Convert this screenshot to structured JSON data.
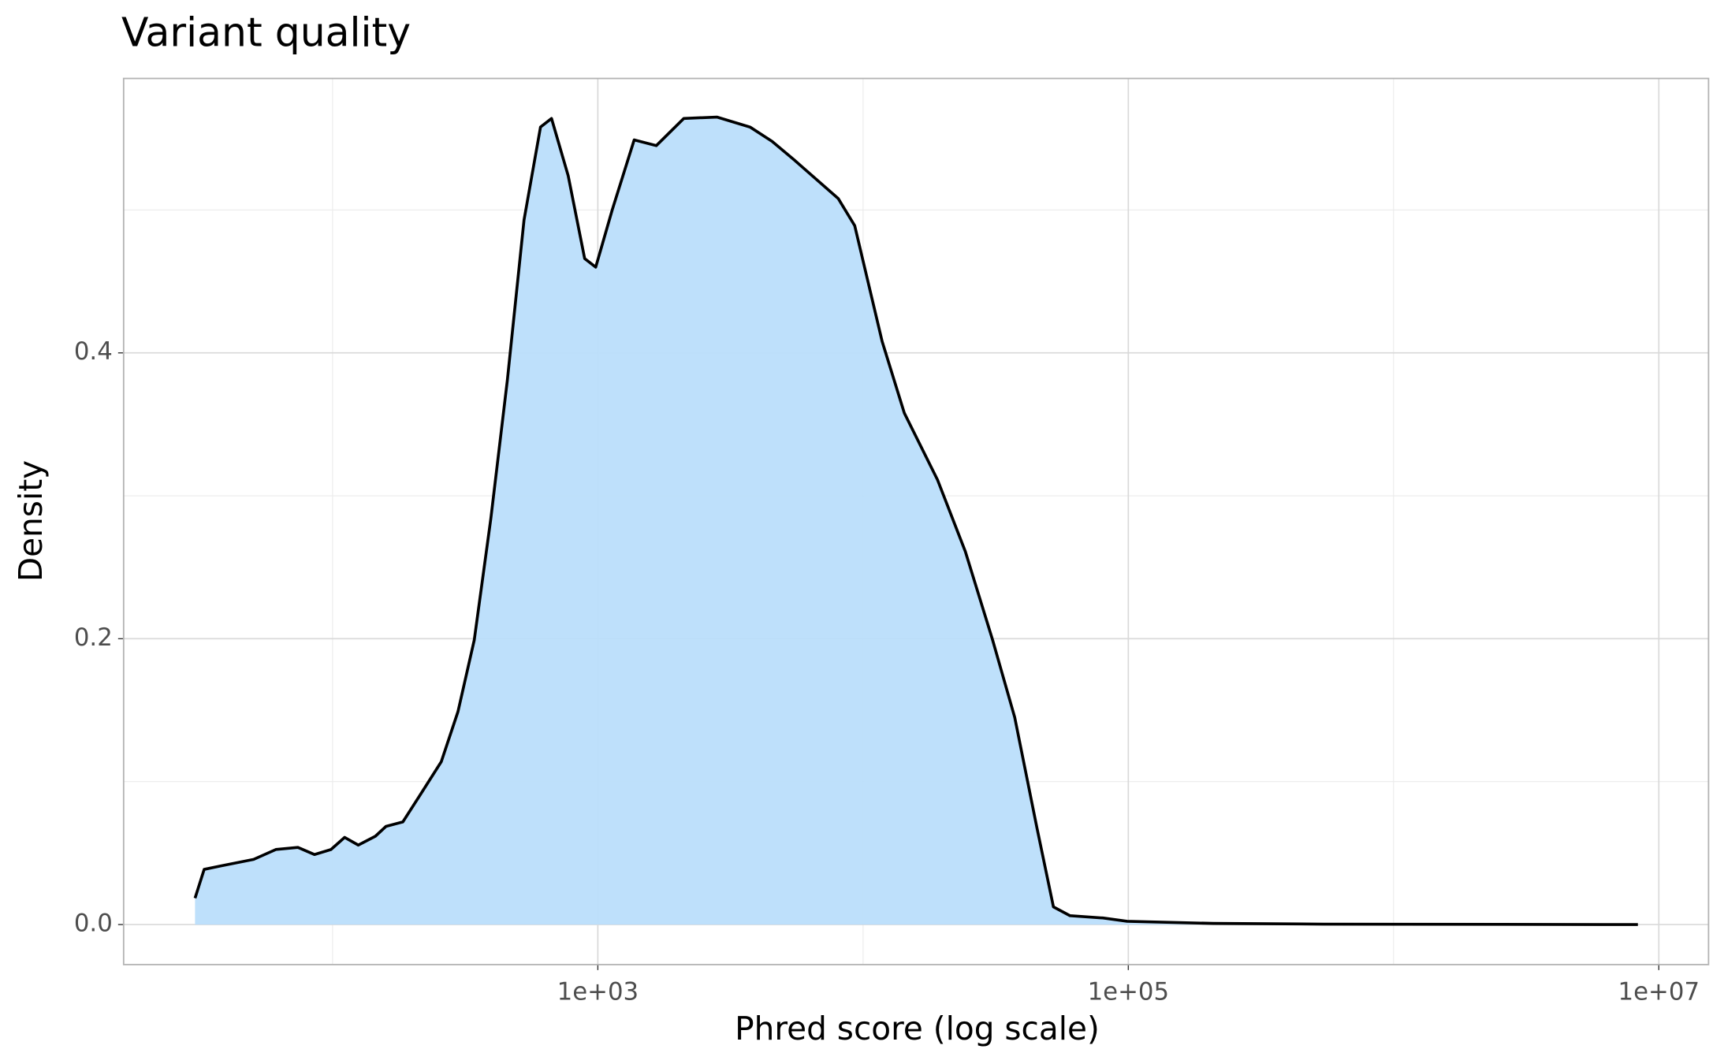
{
  "chart_data": {
    "type": "density",
    "title": "Variant quality",
    "x_label": "Phred score (log scale)",
    "y_label": "Density",
    "x_log_scale": true,
    "grid": true,
    "x": [
      30.3,
      32.8,
      37.8,
      50.4,
      61.1,
      74,
      85.4,
      98.6,
      111,
      125,
      145,
      159,
      184,
      212,
      257,
      297,
      342,
      395,
      456,
      527,
      608,
      669,
      773,
      892,
      982,
      1133,
      1371,
      1661,
      2109,
      2811,
      3748,
      4540,
      5500,
      8060,
      9300,
      11800,
      14300,
      19100,
      24300,
      30800,
      37300,
      45200,
      52200,
      60300,
      80200,
      99000,
      209000,
      545000,
      8340000
    ],
    "series": [
      {
        "color": "#000000",
        "fill": "#bbdefb",
        "values": [
          0.0185,
          0.0386,
          0.041,
          0.0456,
          0.0525,
          0.054,
          0.049,
          0.0525,
          0.061,
          0.0556,
          0.0618,
          0.0687,
          0.0718,
          0.0896,
          0.114,
          0.149,
          0.199,
          0.284,
          0.381,
          0.493,
          0.558,
          0.564,
          0.524,
          0.466,
          0.46,
          0.5,
          0.549,
          0.545,
          0.564,
          0.565,
          0.558,
          0.548,
          0.535,
          0.508,
          0.489,
          0.408,
          0.358,
          0.311,
          0.261,
          0.199,
          0.145,
          0.068,
          0.0124,
          0.0062,
          0.0046,
          0.0023,
          0.0008,
          0.0003,
          0
        ]
      }
    ],
    "xlim": [
      16.3,
      15400000
    ],
    "ylim": [
      -0.028,
      0.592
    ],
    "xticks": [
      {
        "value": 1000,
        "label": "1e+03"
      },
      {
        "value": 100000,
        "label": "1e+05"
      },
      {
        "value": 10000000,
        "label": "1e+07"
      }
    ],
    "yticks": [
      {
        "value": 0,
        "label": "0.0"
      },
      {
        "value": 0.2,
        "label": "0.2"
      },
      {
        "value": 0.4,
        "label": "0.4"
      }
    ],
    "x_minor_grid": [
      100,
      10000,
      1000000
    ],
    "y_minor_grid": [
      0.1,
      0.3,
      0.5
    ]
  }
}
